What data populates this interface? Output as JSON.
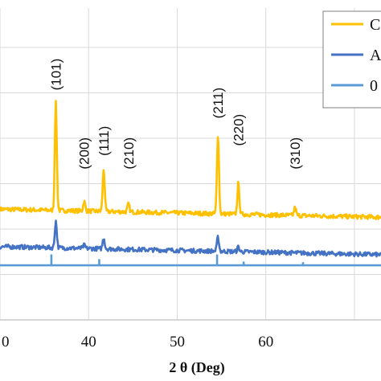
{
  "chart_data": {
    "type": "line",
    "xlabel": "2 θ (Deg)",
    "ylabel": "",
    "xlim": [
      30,
      73
    ],
    "x_ticks": [
      "0",
      "40",
      "50",
      "60"
    ],
    "ylim": [
      0,
      1
    ],
    "grid": true,
    "legend_position": "top-right",
    "legend_entries": [
      "C",
      "A",
      "0"
    ],
    "colors": {
      "C": "#FFC000",
      "A": "#4472C4",
      "0": "#5B9BD5",
      "grid": "#D9D9D9"
    },
    "series": [
      {
        "name": "C",
        "baseline": 0.355,
        "peaks": [
          {
            "x": 36.3,
            "height": 0.345,
            "label": "(101)"
          },
          {
            "x": 39.5,
            "height": 0.03,
            "label": "(200)"
          },
          {
            "x": 41.7,
            "height": 0.135,
            "label": "(111)"
          },
          {
            "x": 44.5,
            "height": 0.025,
            "label": "(210)"
          },
          {
            "x": 54.6,
            "height": 0.255,
            "label": "(211)"
          },
          {
            "x": 56.9,
            "height": 0.1,
            "label": "(220)"
          },
          {
            "x": 63.3,
            "height": 0.025,
            "label": "(310)"
          }
        ]
      },
      {
        "name": "A",
        "baseline": 0.235,
        "peaks": [
          {
            "x": 36.3,
            "height": 0.085
          },
          {
            "x": 39.5,
            "height": 0.01
          },
          {
            "x": 41.7,
            "height": 0.035
          },
          {
            "x": 54.6,
            "height": 0.045
          },
          {
            "x": 56.9,
            "height": 0.015
          }
        ]
      },
      {
        "name": "0",
        "baseline": 0.175,
        "sticks": [
          {
            "x": 35.8,
            "height": 0.035
          },
          {
            "x": 41.2,
            "height": 0.02
          },
          {
            "x": 54.5,
            "height": 0.035
          },
          {
            "x": 57.5,
            "height": 0.012
          },
          {
            "x": 64.2,
            "height": 0.01
          }
        ]
      }
    ],
    "peak_labels": [
      "(101)",
      "(200)",
      "(111)",
      "(210)",
      "(211)",
      "(220)",
      "(310)"
    ]
  }
}
